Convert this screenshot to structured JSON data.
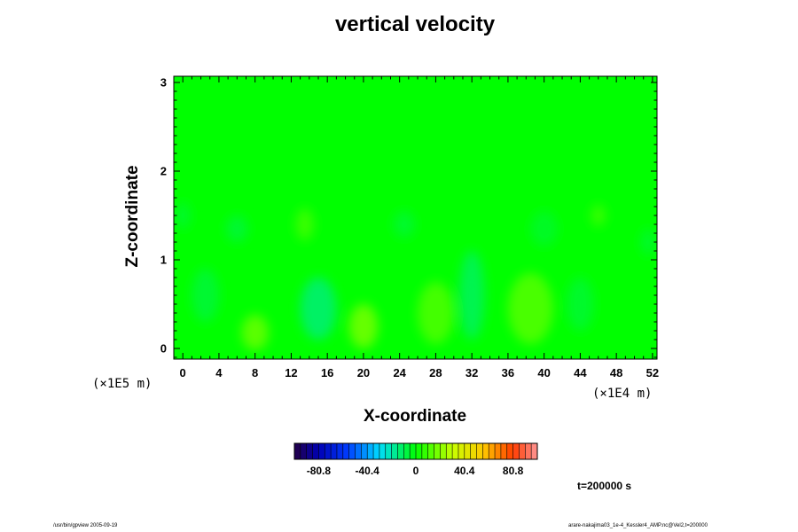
{
  "chart_data": {
    "type": "heatmap",
    "title": "vertical velocity",
    "xlabel": "X-coordinate",
    "ylabel": "Z-coordinate",
    "x_unit": "(×1E4 m)",
    "y_unit": "(×1E5 m)",
    "xlim": [
      -1,
      52.5
    ],
    "ylim": [
      -0.12,
      3.07
    ],
    "xticks": [
      "0",
      "4",
      "8",
      "12",
      "16",
      "20",
      "24",
      "28",
      "32",
      "36",
      "40",
      "44",
      "48",
      "52"
    ],
    "yticks": [
      "0",
      "1",
      "2",
      "3"
    ],
    "colorbar": {
      "range": [
        -101,
        101
      ],
      "ticks": [
        "-80.8",
        "-40.4",
        "0",
        "40.4",
        "80.8"
      ],
      "levels": 40
    },
    "field_features": [
      {
        "x": 8.0,
        "z": 0.18,
        "rx": 1.5,
        "rz": 0.2,
        "v": 16
      },
      {
        "x": 20.0,
        "z": 0.25,
        "rx": 1.6,
        "rz": 0.25,
        "v": 18
      },
      {
        "x": 28.0,
        "z": 0.4,
        "rx": 2.0,
        "rz": 0.35,
        "v": 12
      },
      {
        "x": 38.5,
        "z": 0.45,
        "rx": 2.5,
        "rz": 0.4,
        "v": 13
      },
      {
        "x": 15.0,
        "z": 0.45,
        "rx": 2.0,
        "rz": 0.35,
        "v": -14
      },
      {
        "x": 32.0,
        "z": 0.6,
        "rx": 1.4,
        "rz": 0.5,
        "v": -11
      },
      {
        "x": 2.5,
        "z": 0.6,
        "rx": 1.5,
        "rz": 0.3,
        "v": -7
      },
      {
        "x": 44.0,
        "z": 0.5,
        "rx": 1.5,
        "rz": 0.3,
        "v": -6
      },
      {
        "x": 13.5,
        "z": 1.4,
        "rx": 1.0,
        "rz": 0.18,
        "v": 10
      },
      {
        "x": 46.0,
        "z": 1.5,
        "rx": 0.8,
        "rz": 0.12,
        "v": 10
      },
      {
        "x": 6.0,
        "z": 1.35,
        "rx": 1.2,
        "rz": 0.15,
        "v": -7
      },
      {
        "x": 0.0,
        "z": 1.5,
        "rx": 0.8,
        "rz": 0.15,
        "v": -6
      },
      {
        "x": 24.5,
        "z": 1.4,
        "rx": 1.2,
        "rz": 0.15,
        "v": -6
      },
      {
        "x": 40.0,
        "z": 1.35,
        "rx": 1.5,
        "rz": 0.2,
        "v": -5
      },
      {
        "x": 51.5,
        "z": 1.2,
        "rx": 0.8,
        "rz": 0.15,
        "v": -6
      }
    ]
  },
  "annotations": {
    "time": "t=200000 s",
    "footer_left": "/usr/bin/gpview 2005-09-19",
    "footer_right": "arare-nakajima03_1e-4_Kessler4_AMP.nc@Vel2,t=200000"
  }
}
